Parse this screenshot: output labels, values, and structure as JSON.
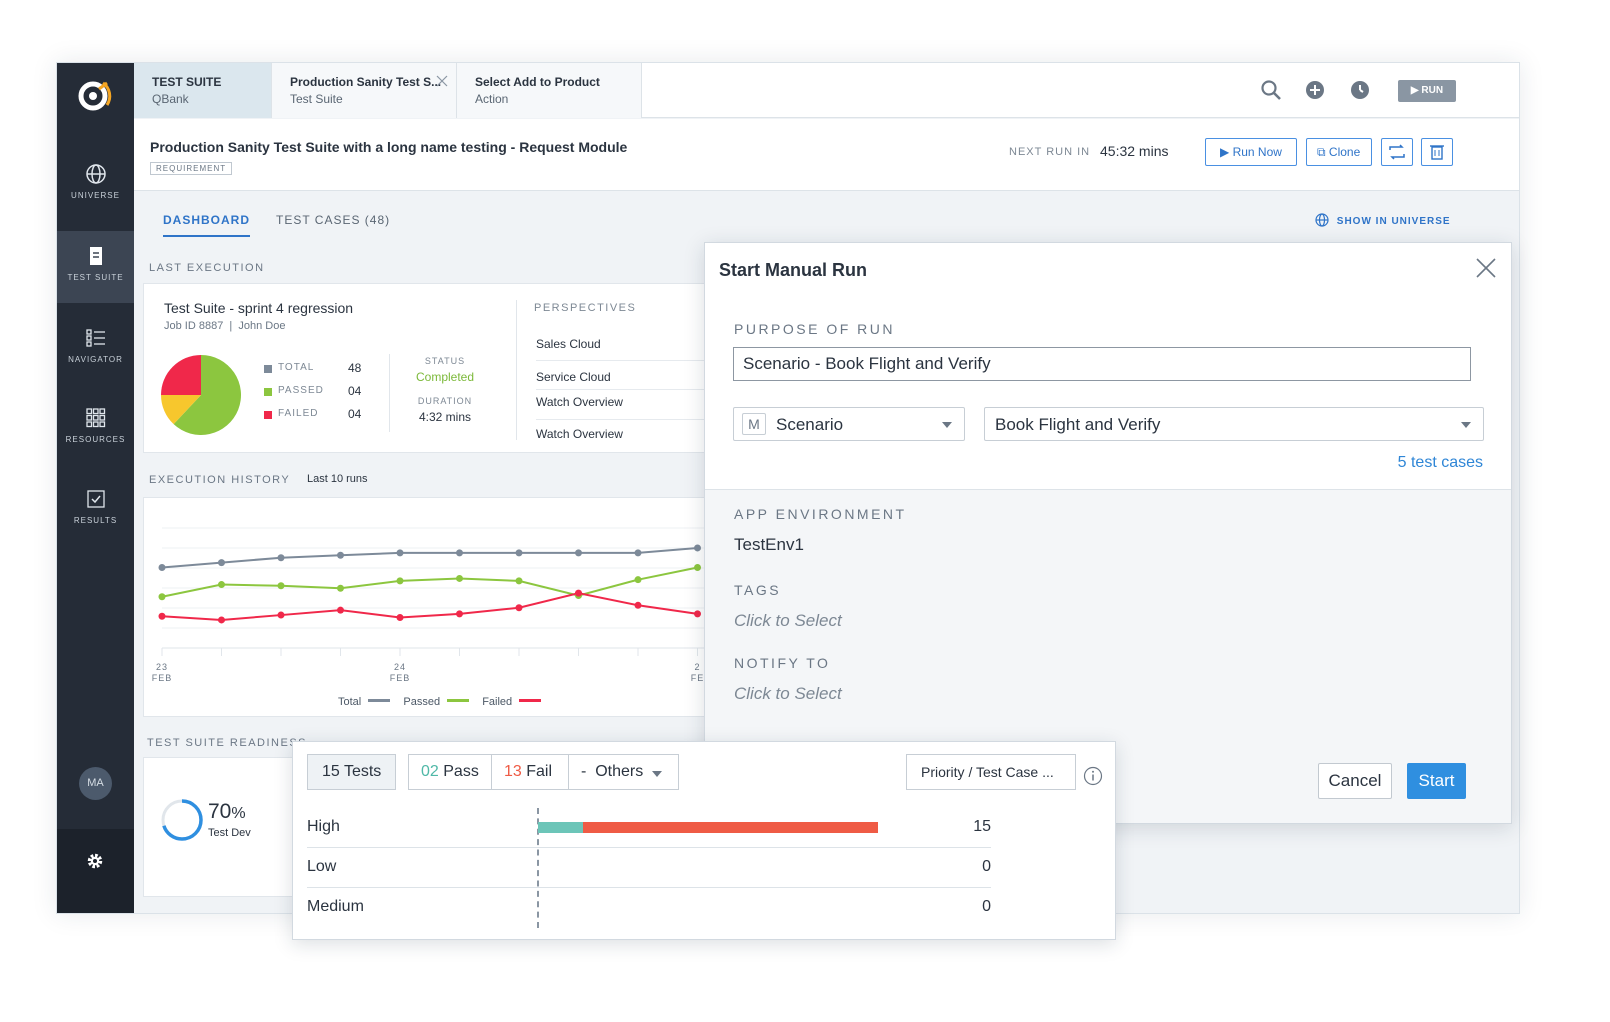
{
  "sidebar": {
    "items": [
      {
        "label": "UNIVERSE",
        "icon": "globe-icon"
      },
      {
        "label": "TEST SUITE",
        "icon": "document-icon"
      },
      {
        "label": "NAVIGATOR",
        "icon": "list-icon"
      },
      {
        "label": "RESOURCES",
        "icon": "grid-icon"
      },
      {
        "label": "RESULTS",
        "icon": "checkbox-icon"
      }
    ],
    "avatar": "MA"
  },
  "tabs": [
    {
      "title": "TEST SUITE",
      "subtitle": "QBank"
    },
    {
      "title": "Production Sanity Test S...",
      "subtitle": "Test Suite"
    },
    {
      "title": "Select Add to Product",
      "subtitle": "Action"
    }
  ],
  "topbar": {
    "run_label": "RUN"
  },
  "header": {
    "title": "Production Sanity Test Suite with a long name testing - Request Module",
    "badge": "REQUIREMENT",
    "next_run_label": "NEXT RUN IN",
    "next_run_value": "45:32 mins",
    "run_now_label": "Run Now",
    "clone_label": "Clone"
  },
  "subtabs": {
    "dashboard": "DASHBOARD",
    "test_cases": "TEST CASES (48)",
    "show_in_universe": "SHOW IN UNIVERSE"
  },
  "last_execution": {
    "section_label": "LAST EXECUTION",
    "suite_name": "Test Suite - sprint 4 regression",
    "job_meta": "Job ID 8887  |  John Doe",
    "legend": [
      {
        "label": "TOTAL",
        "value": "48",
        "color": "#7d8a99"
      },
      {
        "label": "PASSED",
        "value": "04",
        "color": "#8cc63f"
      },
      {
        "label": "FAILED",
        "value": "04",
        "color": "#f0284a"
      }
    ],
    "pie": [
      {
        "name": "Passed",
        "value": 0.62,
        "color": "#8cc63f"
      },
      {
        "name": "Warn",
        "value": 0.13,
        "color": "#f7c72d"
      },
      {
        "name": "Failed",
        "value": 0.25,
        "color": "#f0284a"
      }
    ],
    "status_label": "STATUS",
    "status_value": "Completed",
    "duration_label": "DURATION",
    "duration_value": "4:32 mins",
    "perspectives_label": "PERSPECTIVES",
    "perspectives": [
      "Sales Cloud",
      "Service Cloud",
      "Watch Overview",
      "Watch Overview"
    ]
  },
  "execution_history": {
    "section_label": "EXECUTION HISTORY",
    "range_label": "Last 10 runs",
    "x_ticks": [
      {
        "day": "23",
        "month": "FEB"
      },
      {
        "day": "24",
        "month": "FEB"
      },
      {
        "day": "2",
        "month": "FE"
      }
    ],
    "legend": [
      {
        "name": "Total",
        "color": "#7d8a99"
      },
      {
        "name": "Passed",
        "color": "#8cc63f"
      },
      {
        "name": "Failed",
        "color": "#f0284a"
      }
    ]
  },
  "chart_data": {
    "type": "line",
    "x": [
      1,
      2,
      3,
      4,
      5,
      6,
      7,
      8,
      9,
      10
    ],
    "ylim": [
      0,
      100
    ],
    "series": [
      {
        "name": "Total",
        "color": "#7d8a99",
        "values": [
          66,
          70,
          74,
          76,
          78,
          78,
          78,
          78,
          78,
          82
        ]
      },
      {
        "name": "Passed",
        "color": "#8cc63f",
        "values": [
          42,
          52,
          51,
          49,
          55,
          57,
          55,
          43,
          56,
          66
        ]
      },
      {
        "name": "Failed",
        "color": "#f0284a",
        "values": [
          26,
          23,
          27,
          31,
          25,
          28,
          33,
          45,
          35,
          28
        ]
      }
    ]
  },
  "readiness": {
    "section_label": "TEST SUITE READINESS",
    "percent": 70,
    "percent_text": "70",
    "percent_sign": "%",
    "caption": "Test Dev"
  },
  "modal": {
    "title": "Start Manual Run",
    "purpose_label": "PURPOSE OF RUN",
    "purpose_value": "Scenario - Book Flight and Verify",
    "type_badge": "M",
    "type_value": "Scenario",
    "scenario_value": "Book Flight and Verify",
    "test_cases_link": "5 test cases",
    "env_label": "APP ENVIRONMENT",
    "env_value": "TestEnv1",
    "tags_label": "TAGS",
    "tags_placeholder": "Click to Select",
    "notify_label": "NOTIFY TO",
    "notify_placeholder": "Click to Select",
    "cancel_label": "Cancel",
    "start_label": "Start"
  },
  "priority_panel": {
    "tests_count": "15",
    "tests_label": "Tests",
    "pass_count": "02",
    "pass_label": "Pass",
    "fail_count": "13",
    "fail_label": "Fail",
    "others_label": "-  Others",
    "group_label": "Priority / Test Case ...",
    "rows": [
      {
        "name": "High",
        "value": "15",
        "pass": 2,
        "fail": 13
      },
      {
        "name": "Low",
        "value": "0",
        "pass": 0,
        "fail": 0
      },
      {
        "name": "Medium",
        "value": "0",
        "pass": 0,
        "fail": 0
      }
    ],
    "colors": {
      "pass": "#6cc5b8",
      "fail": "#ef5b45"
    }
  }
}
